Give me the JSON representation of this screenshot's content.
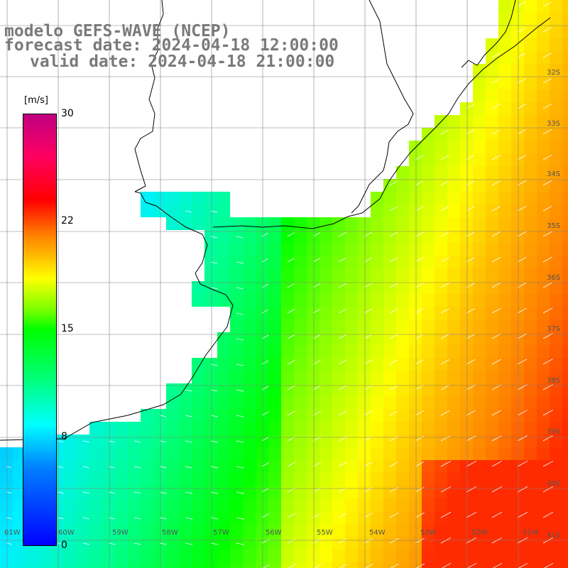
{
  "title": {
    "model": "modelo GEFS-WAVE (NCEP)",
    "forecast": "forecast date: 2024-04-18 12:00:00",
    "valid": "valid date: 2024-04-18 21:00:00"
  },
  "colorbar": {
    "unit": "[m/s]",
    "ticks": [
      "30",
      "22",
      "15",
      "8",
      "0"
    ],
    "range": [
      0,
      30
    ]
  },
  "map": {
    "lat_labels": [
      "32S",
      "33S",
      "34S",
      "35S",
      "36S",
      "37S",
      "38S",
      "39S",
      "40S",
      "41S"
    ],
    "lon_labels": [
      "61W",
      "60W",
      "59W",
      "58W",
      "57W",
      "56W",
      "55W",
      "54W",
      "53W",
      "52W",
      "51W"
    ],
    "extent": {
      "lon": [
        -61.7,
        -50.5
      ],
      "lat": [
        -41.2,
        -30.9
      ]
    },
    "colors": {
      "land": "#ffffff",
      "coast": "#000000",
      "grid": "#808080"
    }
  }
}
